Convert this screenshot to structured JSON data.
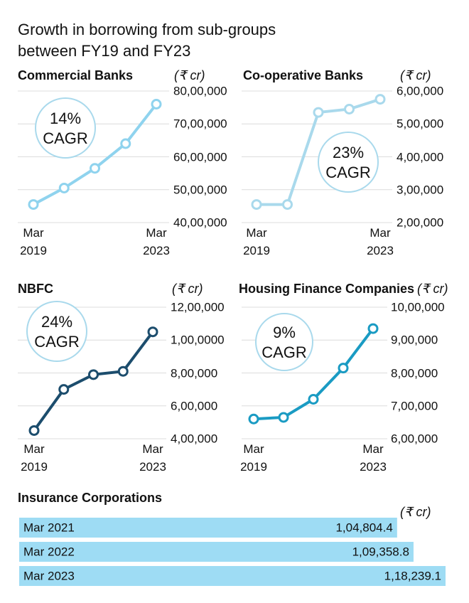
{
  "title": [
    "Growth in borrowing from sub-groups",
    "between FY19 and FY23"
  ],
  "chart_data": [
    {
      "type": "line",
      "title": "Commercial Banks",
      "unit": "(₹ cr)",
      "annotation": [
        "14%",
        "CAGR"
      ],
      "categories": [
        "Mar 2019",
        null,
        null,
        null,
        "Mar 2023"
      ],
      "series": [
        {
          "color": "#8fd3ee",
          "values": [
            4550000,
            5050000,
            5650000,
            6400000,
            7600000
          ]
        }
      ],
      "ylim": [
        4000000,
        8000000
      ],
      "yticks": [
        {
          "value": 4000000,
          "label": "40,00,000"
        },
        {
          "value": 5000000,
          "label": "50,00,000"
        },
        {
          "value": 6000000,
          "label": "60,00,000"
        },
        {
          "value": 7000000,
          "label": "70,00,000"
        },
        {
          "value": 8000000,
          "label": "80,00,000"
        }
      ],
      "grid": true
    },
    {
      "type": "line",
      "title": "Co-operative Banks",
      "unit": "(₹ cr)",
      "annotation": [
        "23%",
        "CAGR"
      ],
      "categories": [
        "Mar 2019",
        null,
        null,
        null,
        "Mar 2023"
      ],
      "series": [
        {
          "color": "#a9d9ec",
          "values": [
            255000,
            255000,
            535000,
            545000,
            575000
          ]
        }
      ],
      "ylim": [
        200000,
        600000
      ],
      "yticks": [
        {
          "value": 200000,
          "label": "2,00,000"
        },
        {
          "value": 300000,
          "label": "3,00,000"
        },
        {
          "value": 400000,
          "label": "4,00,000"
        },
        {
          "value": 500000,
          "label": "5,00,000"
        },
        {
          "value": 600000,
          "label": "6,00,000"
        }
      ],
      "grid": true
    },
    {
      "type": "line",
      "title": "NBFC",
      "unit": "(₹ cr)",
      "annotation": [
        "24%",
        "CAGR"
      ],
      "categories": [
        "Mar 2019",
        null,
        null,
        null,
        "Mar 2023"
      ],
      "series": [
        {
          "color": "#1c4d6d",
          "values": [
            450000,
            700000,
            790000,
            810000,
            1050000
          ]
        }
      ],
      "ylim": [
        400000,
        1200000
      ],
      "yticks": [
        {
          "value": 400000,
          "label": "4,00,000"
        },
        {
          "value": 600000,
          "label": "6,00,000"
        },
        {
          "value": 800000,
          "label": "8,00,000"
        },
        {
          "value": 1000000,
          "label": "1,00,0000"
        },
        {
          "value": 1200000,
          "label": "12,00,000"
        }
      ],
      "grid": true
    },
    {
      "type": "line",
      "title": "Housing Finance Companies",
      "unit": "(₹ cr)",
      "annotation": [
        "9%",
        "CAGR"
      ],
      "categories": [
        "Mar 2019",
        null,
        null,
        null,
        "Mar 2023"
      ],
      "series": [
        {
          "color": "#1a9bc3",
          "values": [
            660000,
            665000,
            720000,
            815000,
            935000
          ]
        }
      ],
      "ylim": [
        600000,
        1000000
      ],
      "yticks": [
        {
          "value": 600000,
          "label": "6,00,000"
        },
        {
          "value": 700000,
          "label": "7,00,000"
        },
        {
          "value": 800000,
          "label": "8,00,000"
        },
        {
          "value": 900000,
          "label": "9,00,000"
        },
        {
          "value": 1000000,
          "label": "10,00,000"
        }
      ],
      "grid": true
    },
    {
      "type": "bar",
      "orientation": "horizontal",
      "title": "Insurance Corporations",
      "unit": "(₹ cr)",
      "categories": [
        "Mar 2021",
        "Mar 2022",
        "Mar 2023"
      ],
      "color": "#9edcf4",
      "values": [
        104804.4,
        109358.8,
        118239.1
      ],
      "value_labels": [
        "1,04,804.4",
        "1,09,358.8",
        "1,18,239.1"
      ]
    }
  ]
}
